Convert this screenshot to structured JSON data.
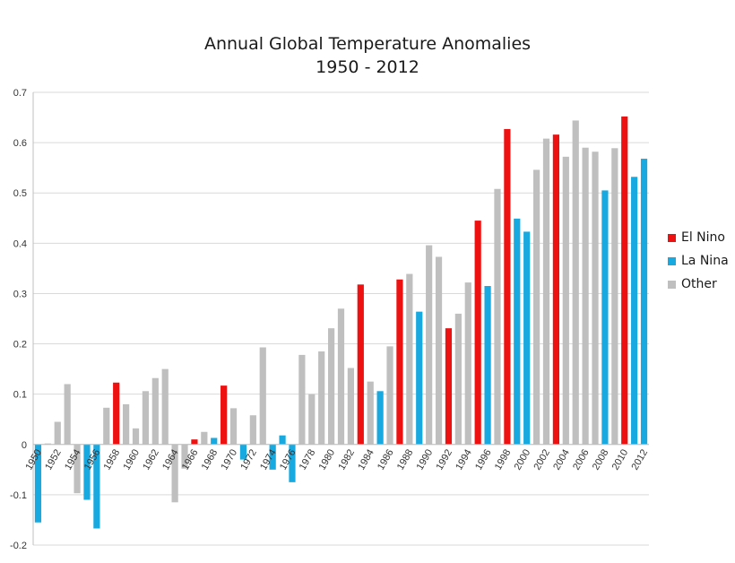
{
  "chart_data": {
    "type": "bar",
    "title": "Annual Global Temperature Anomalies",
    "subtitle": "1950 - 2012",
    "xlabel": "",
    "ylabel": "",
    "ylim": [
      -0.2,
      0.7
    ],
    "yticks": [
      "0.7",
      "0.6",
      "0.5",
      "0.4",
      "0.3",
      "0.2",
      "0.1",
      "0",
      "-0.1",
      "-0.2"
    ],
    "x_tick_labels": [
      "1950",
      "1952",
      "1954",
      "1956",
      "1958",
      "1960",
      "1962",
      "1964",
      "1966",
      "1968",
      "1970",
      "1972",
      "1974",
      "1976",
      "1978",
      "1980",
      "1982",
      "1984",
      "1986",
      "1988",
      "1990",
      "1992",
      "1994",
      "1996",
      "1998",
      "2000",
      "2002",
      "2004",
      "2006",
      "2008",
      "2010",
      "2012"
    ],
    "grid": true,
    "legend_position": "right",
    "colors": {
      "El Nino": "#ee1111",
      "La Nina": "#17a9e0",
      "Other": "#bfbfbf"
    },
    "series": [
      {
        "name": "El Nino"
      },
      {
        "name": "La Nina"
      },
      {
        "name": "Other"
      }
    ],
    "categories": [
      1950,
      1951,
      1952,
      1953,
      1954,
      1955,
      1956,
      1957,
      1958,
      1959,
      1960,
      1961,
      1962,
      1963,
      1964,
      1965,
      1966,
      1967,
      1968,
      1969,
      1970,
      1971,
      1972,
      1973,
      1974,
      1975,
      1976,
      1977,
      1978,
      1979,
      1980,
      1981,
      1982,
      1983,
      1984,
      1985,
      1986,
      1987,
      1988,
      1989,
      1990,
      1991,
      1992,
      1993,
      1994,
      1995,
      1996,
      1997,
      1998,
      1999,
      2000,
      2001,
      2002,
      2003,
      2004,
      2005,
      2006,
      2007,
      2008,
      2009,
      2010,
      2011,
      2012
    ],
    "values": [
      -0.155,
      0.002,
      0.045,
      0.12,
      -0.097,
      -0.11,
      -0.167,
      0.073,
      0.123,
      0.08,
      0.032,
      0.106,
      0.132,
      0.15,
      -0.115,
      -0.048,
      0.01,
      0.025,
      0.013,
      0.117,
      0.072,
      -0.03,
      0.058,
      0.193,
      -0.05,
      0.018,
      -0.075,
      0.178,
      0.1,
      0.185,
      0.231,
      0.27,
      0.152,
      0.318,
      0.125,
      0.106,
      0.195,
      0.328,
      0.339,
      0.264,
      0.396,
      0.373,
      0.231,
      0.26,
      0.322,
      0.445,
      0.315,
      0.508,
      0.627,
      0.449,
      0.423,
      0.546,
      0.608,
      0.616,
      0.572,
      0.644,
      0.59,
      0.582,
      0.505,
      0.589,
      0.652,
      0.532,
      0.568
    ],
    "category_series": [
      "La Nina",
      "Other",
      "Other",
      "Other",
      "Other",
      "La Nina",
      "La Nina",
      "Other",
      "El Nino",
      "Other",
      "Other",
      "Other",
      "Other",
      "Other",
      "Other",
      "Other",
      "El Nino",
      "Other",
      "La Nina",
      "El Nino",
      "Other",
      "La Nina",
      "Other",
      "Other",
      "La Nina",
      "La Nina",
      "La Nina",
      "Other",
      "Other",
      "Other",
      "Other",
      "Other",
      "Other",
      "El Nino",
      "Other",
      "La Nina",
      "Other",
      "El Nino",
      "Other",
      "La Nina",
      "Other",
      "Other",
      "El Nino",
      "Other",
      "Other",
      "El Nino",
      "La Nina",
      "Other",
      "El Nino",
      "La Nina",
      "La Nina",
      "Other",
      "Other",
      "El Nino",
      "Other",
      "Other",
      "Other",
      "Other",
      "La Nina",
      "Other",
      "El Nino",
      "La Nina",
      "La Nina"
    ]
  }
}
